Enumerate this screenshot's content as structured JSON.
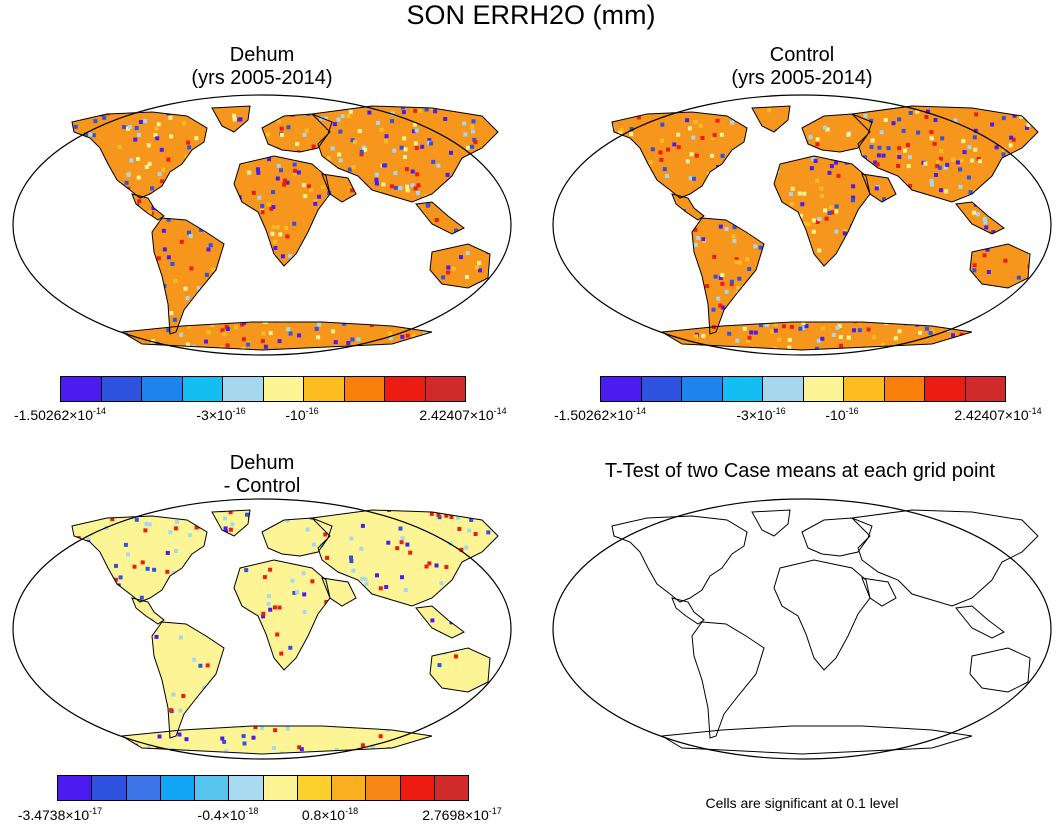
{
  "title": "SON ERRH2O (mm)",
  "panels": {
    "top_left": {
      "title_line1": "Dehum",
      "title_line2": "(yrs 2005-2014)"
    },
    "top_right": {
      "title_line1": "Control",
      "title_line2": "(yrs 2005-2014)"
    },
    "bottom_left": {
      "title_line1": "Dehum",
      "title_line2": "- Control"
    },
    "bottom_right": {
      "title_line1": "T-Test of two Case means at each grid point",
      "note": "Cells are significant at 0.1 level"
    }
  },
  "colorbars": {
    "cases": {
      "colors": [
        "#4b1bf0",
        "#2f52e0",
        "#1e84f0",
        "#14bdf2",
        "#a5d8ee",
        "#fdf595",
        "#fdbd21",
        "#f97f0a",
        "#ee1c10",
        "#d12a2a"
      ],
      "labels": [
        {
          "base": "-1.50262×10",
          "exp": "-14"
        },
        {
          "base": "-3×10",
          "exp": "-16"
        },
        {
          "base": "-10",
          "exp": "-16"
        },
        {
          "base": "2.42407×10",
          "exp": "-14"
        }
      ]
    },
    "diff": {
      "colors": [
        "#4b1bf0",
        "#2f52e0",
        "#3c76e8",
        "#12a5f6",
        "#55c5ee",
        "#a9daf0",
        "#fdf595",
        "#fdcf2a",
        "#fbae20",
        "#f88816",
        "#ee1c10",
        "#d12a2a"
      ],
      "labels": [
        {
          "base": "-3.4738×10",
          "exp": "-17"
        },
        {
          "base": "-0.4×10",
          "exp": "-18"
        },
        {
          "base": "0.8×10",
          "exp": "-18"
        },
        {
          "base": "2.7698×10",
          "exp": "-17"
        }
      ]
    }
  },
  "map_colors": {
    "land_case": "#f6961c",
    "land_diff": "#fdf595",
    "speckle": [
      "#4b1bf0",
      "#2f52e0",
      "#a5d8ee",
      "#ee1c10",
      "#fdbd21",
      "#fdf595"
    ],
    "coast": "#000000"
  }
}
